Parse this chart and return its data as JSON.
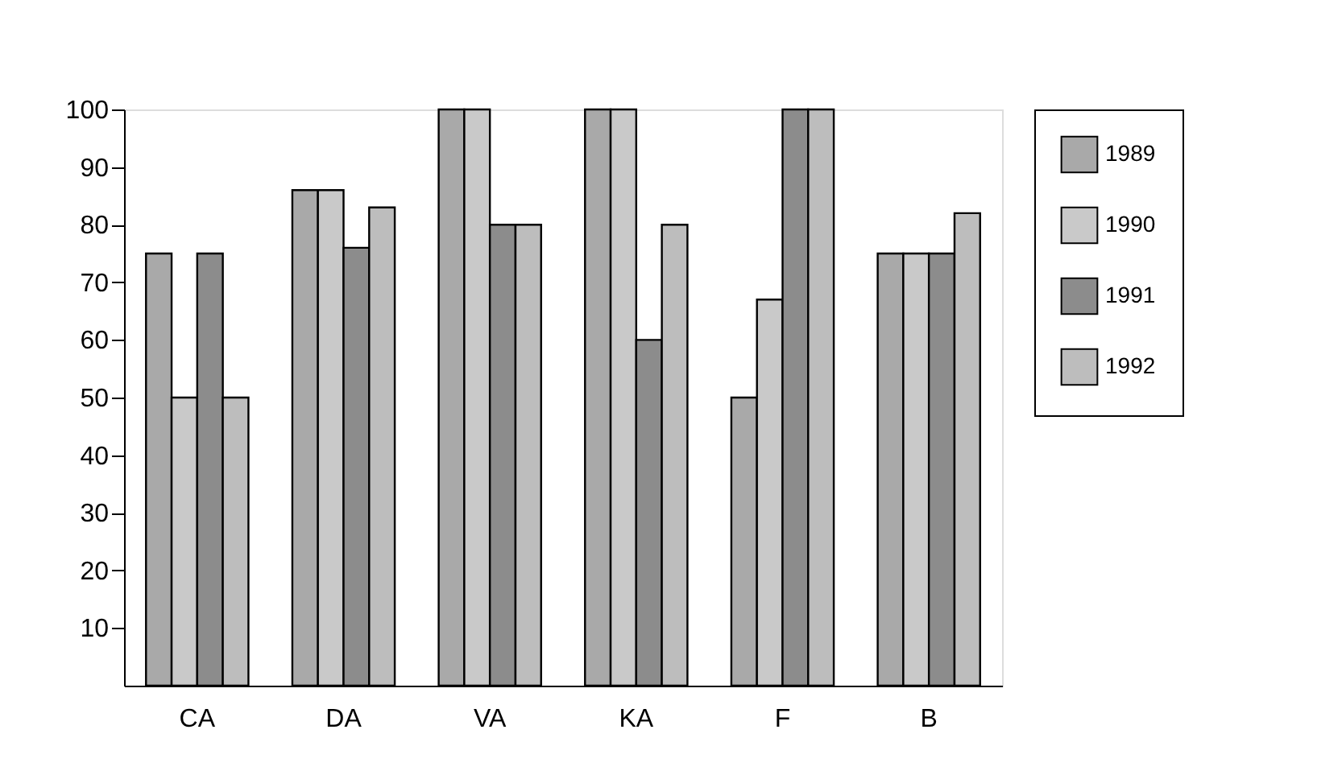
{
  "chart_data": {
    "type": "bar",
    "categories": [
      "CA",
      "DA",
      "VA",
      "KA",
      "F",
      "B"
    ],
    "series": [
      {
        "name": "1989",
        "color": "#a9a9a9",
        "values": [
          75,
          86,
          100,
          100,
          50,
          75
        ]
      },
      {
        "name": "1990",
        "color": "#c9c9c9",
        "values": [
          50,
          86,
          100,
          100,
          67,
          75
        ]
      },
      {
        "name": "1991",
        "color": "#8c8c8c",
        "values": [
          75,
          76,
          80,
          60,
          100,
          75
        ]
      },
      {
        "name": "1992",
        "color": "#bdbdbd",
        "values": [
          50,
          83,
          80,
          80,
          100,
          82
        ]
      }
    ],
    "ylim": [
      0,
      100
    ],
    "yticks": [
      10,
      20,
      30,
      40,
      50,
      60,
      70,
      80,
      90,
      100
    ],
    "grid": false,
    "legend": "right"
  }
}
